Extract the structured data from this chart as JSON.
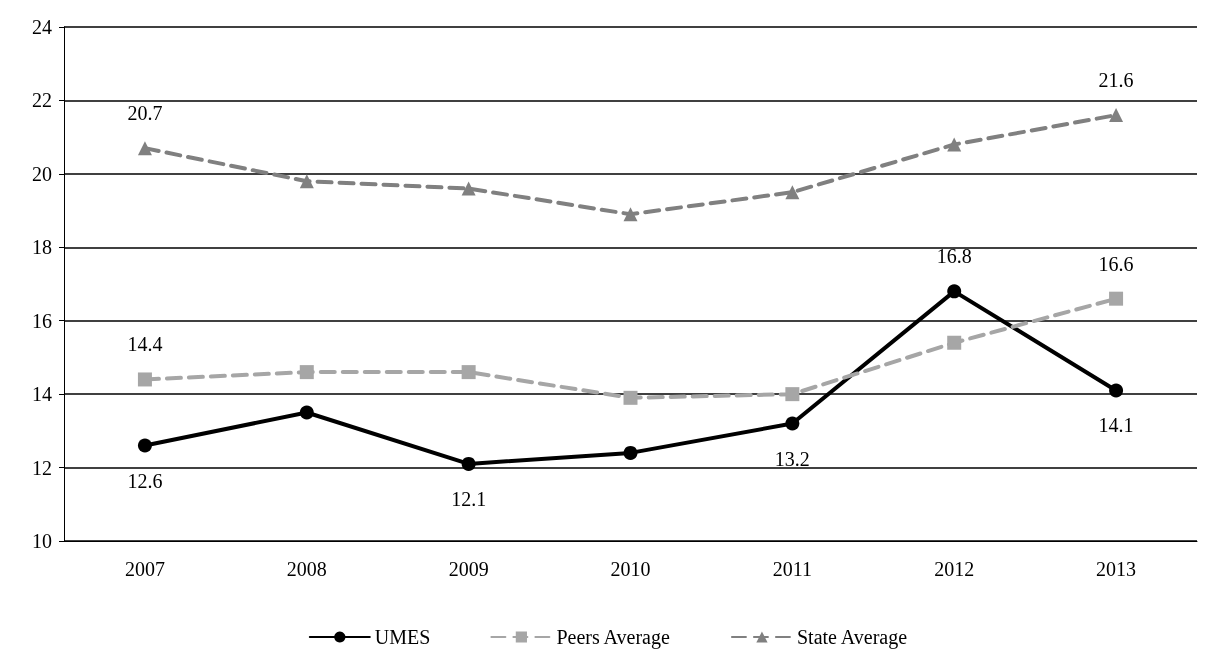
{
  "chart_data": {
    "type": "line",
    "categories": [
      "2007",
      "2008",
      "2009",
      "2010",
      "2011",
      "2012",
      "2013"
    ],
    "series": [
      {
        "name": "UMES",
        "color": "#000000",
        "marker": "circle",
        "line_style": "solid",
        "values": [
          12.6,
          13.5,
          12.1,
          12.4,
          13.2,
          16.8,
          14.1
        ],
        "value_labels": [
          "12.6",
          null,
          "12.1",
          null,
          "13.2",
          "16.8",
          "14.1"
        ]
      },
      {
        "name": "Peers Average",
        "color": "#a6a6a6",
        "marker": "square",
        "line_style": "dashed",
        "values": [
          14.4,
          14.6,
          14.6,
          13.9,
          14.0,
          15.4,
          16.6
        ],
        "value_labels": [
          "14.4",
          null,
          null,
          null,
          null,
          null,
          "16.6"
        ]
      },
      {
        "name": "State Average",
        "color": "#808080",
        "marker": "triangle",
        "line_style": "dashed",
        "values": [
          20.7,
          19.8,
          19.6,
          18.9,
          19.5,
          20.8,
          21.6
        ],
        "value_labels": [
          "20.7",
          null,
          null,
          null,
          null,
          null,
          "21.6"
        ]
      }
    ],
    "ylim": [
      10,
      24
    ],
    "yticks": [
      10,
      12,
      14,
      16,
      18,
      20,
      22,
      24
    ],
    "grid": "y",
    "legend": "bottom"
  }
}
